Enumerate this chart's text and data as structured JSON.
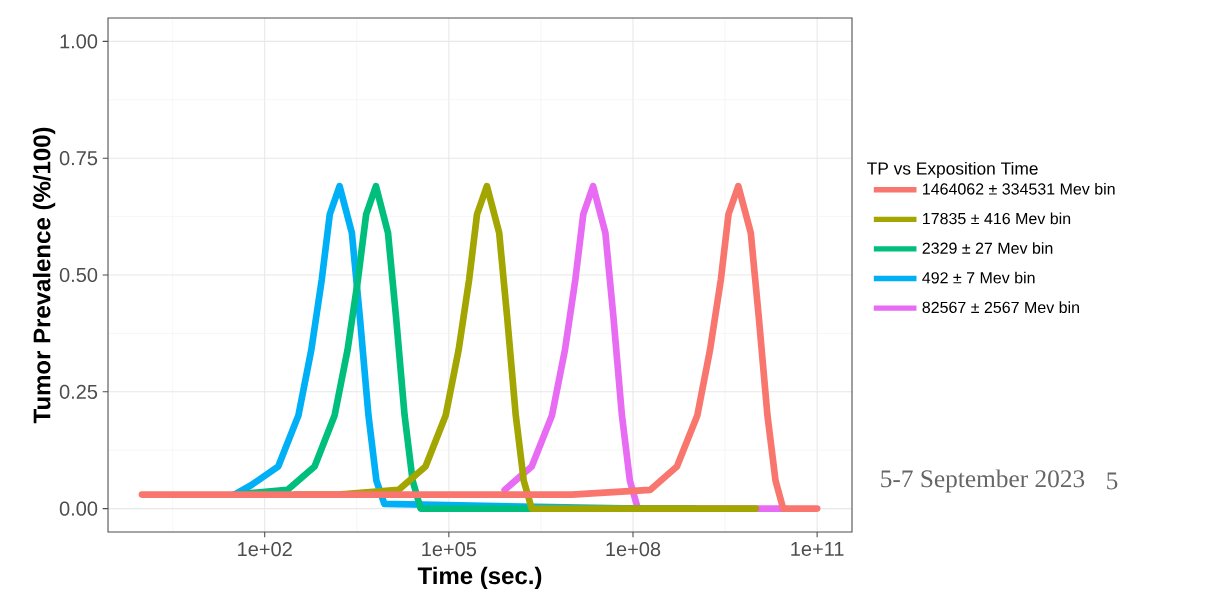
{
  "chart_data": {
    "type": "line",
    "xlabel": "Time (sec.)",
    "ylabel": "Tumor Prevalence (%/100)",
    "legend_title": "TP vs Exposition Time",
    "log": "x",
    "grid": true,
    "legend": "right",
    "line_style": "solid",
    "marker": "none",
    "xlim": [
      0.28,
      370000000000.0
    ],
    "ylim": [
      -0.05,
      1.05
    ],
    "xticks": [
      {
        "value": 100,
        "label": "1e+02"
      },
      {
        "value": 100000,
        "label": "1e+05"
      },
      {
        "value": 100000000,
        "label": "1e+08"
      },
      {
        "value": 100000000000,
        "label": "1e+11"
      }
    ],
    "yticks": [
      {
        "value": 0,
        "label": "0.00"
      },
      {
        "value": 0.25,
        "label": "0.25"
      },
      {
        "value": 0.5,
        "label": "0.50"
      },
      {
        "value": 0.75,
        "label": "0.75"
      },
      {
        "value": 1,
        "label": "1.00"
      }
    ],
    "series": [
      {
        "name": "1464062 ± 334531 Mev bin",
        "color": "#f8766d",
        "x": [
          1,
          10000000,
          190000000,
          520000000,
          1120000000,
          1800000000,
          2700000000,
          3600000000,
          5200000000,
          8300000000,
          11200000000,
          15500000000,
          21000000000,
          28000000000,
          100000000000
        ],
        "values": [
          0.03,
          0.03,
          0.04,
          0.09,
          0.2,
          0.34,
          0.49,
          0.63,
          0.69,
          0.59,
          0.41,
          0.2,
          0.06,
          0,
          0
        ]
      },
      {
        "name": "17835 ± 416 Mev bin",
        "color": "#a3a500",
        "x": [
          316,
          1580,
          15100,
          41700,
          89000,
          144500,
          214000,
          288000,
          417000,
          661000,
          891000,
          1230000,
          1660000,
          2240000,
          10000000000
        ],
        "values": [
          0.03,
          0.03,
          0.04,
          0.09,
          0.2,
          0.34,
          0.49,
          0.63,
          0.69,
          0.59,
          0.41,
          0.2,
          0.06,
          0,
          0
        ]
      },
      {
        "name": "2329 ± 27 Mev bin",
        "color": "#00bf7d",
        "x": [
          32,
          234,
          650,
          1380,
          2240,
          3300,
          4500,
          6500,
          10200,
          13800,
          19000,
          25700,
          34700,
          1000000000
        ],
        "values": [
          0.03,
          0.04,
          0.09,
          0.2,
          0.34,
          0.49,
          0.63,
          0.69,
          0.59,
          0.41,
          0.2,
          0.06,
          0,
          0
        ]
      },
      {
        "name": "492 ± 7 Mev bin",
        "color": "#00b0f6",
        "x": [
          32,
          60,
          166,
          355,
          575,
          850,
          1150,
          1660,
          2630,
          3550,
          4900,
          6600,
          8900,
          120000000
        ],
        "values": [
          0.03,
          0.05,
          0.09,
          0.2,
          0.34,
          0.49,
          0.63,
          0.69,
          0.59,
          0.41,
          0.2,
          0.06,
          0.01,
          0
        ]
      },
      {
        "name": "82567 ± 2567 Mev bin",
        "color": "#e76bf3",
        "x": [
          810000,
          2240000,
          4800000,
          7800000,
          11500000,
          15500000,
          22400000,
          35500000,
          48000000,
          66000000,
          89000000,
          120000000,
          29500000000
        ],
        "values": [
          0.04,
          0.09,
          0.2,
          0.34,
          0.49,
          0.63,
          0.69,
          0.59,
          0.41,
          0.2,
          0.06,
          0,
          0
        ]
      }
    ],
    "annotations": [
      "5-7 September 2023",
      "5"
    ]
  }
}
